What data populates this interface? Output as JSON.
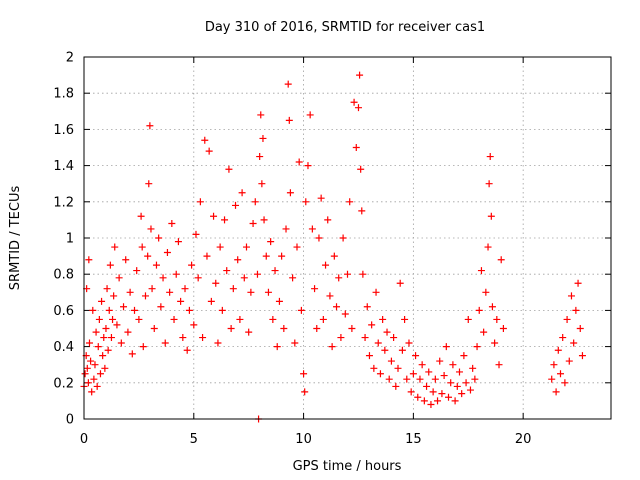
{
  "chart_data": {
    "type": "scatter",
    "title": "Day 310 of 2016, SRMTID for receiver cas1",
    "xlabel": "GPS time / hours",
    "ylabel": "SRMTID / TECUs",
    "xlim": [
      0,
      24
    ],
    "ylim": [
      0,
      2
    ],
    "xticks": [
      0,
      5,
      10,
      15,
      20
    ],
    "yticks": [
      0,
      0.2,
      0.4,
      0.6,
      0.8,
      1,
      1.2,
      1.4,
      1.6,
      1.8,
      2
    ],
    "xtick_labels": [
      "0",
      "5",
      "10",
      "15",
      "20"
    ],
    "ytick_labels": [
      "0",
      "0.2",
      "0.4",
      "0.6",
      "0.8",
      "1",
      "1.2",
      "1.4",
      "1.6",
      "1.8",
      "2"
    ],
    "grid": true,
    "marker": "plus",
    "color": "#ff0000",
    "series": [
      {
        "name": "SRMTID",
        "points": [
          [
            0.0,
            0.18
          ],
          [
            0.05,
            0.25
          ],
          [
            0.1,
            0.35
          ],
          [
            0.12,
            0.72
          ],
          [
            0.15,
            0.28
          ],
          [
            0.2,
            0.2
          ],
          [
            0.22,
            0.88
          ],
          [
            0.25,
            0.42
          ],
          [
            0.3,
            0.32
          ],
          [
            0.35,
            0.15
          ],
          [
            0.4,
            0.6
          ],
          [
            0.45,
            0.22
          ],
          [
            0.5,
            0.3
          ],
          [
            0.55,
            0.48
          ],
          [
            0.6,
            0.18
          ],
          [
            0.65,
            0.4
          ],
          [
            0.7,
            0.55
          ],
          [
            0.75,
            0.25
          ],
          [
            0.8,
            0.65
          ],
          [
            0.85,
            0.35
          ],
          [
            0.9,
            0.45
          ],
          [
            0.95,
            0.28
          ],
          [
            1.0,
            0.5
          ],
          [
            1.05,
            0.72
          ],
          [
            1.1,
            0.38
          ],
          [
            1.15,
            0.6
          ],
          [
            1.2,
            0.85
          ],
          [
            1.25,
            0.45
          ],
          [
            1.3,
            0.55
          ],
          [
            1.35,
            0.68
          ],
          [
            1.4,
            0.95
          ],
          [
            1.5,
            0.52
          ],
          [
            1.6,
            0.78
          ],
          [
            1.7,
            0.42
          ],
          [
            1.8,
            0.62
          ],
          [
            1.9,
            0.88
          ],
          [
            2.0,
            0.48
          ],
          [
            2.1,
            0.7
          ],
          [
            2.2,
            0.36
          ],
          [
            2.3,
            0.6
          ],
          [
            2.4,
            0.82
          ],
          [
            2.5,
            0.55
          ],
          [
            2.6,
            1.12
          ],
          [
            2.65,
            0.95
          ],
          [
            2.7,
            0.4
          ],
          [
            2.8,
            0.68
          ],
          [
            2.9,
            0.9
          ],
          [
            2.95,
            1.3
          ],
          [
            3.0,
            1.62
          ],
          [
            3.05,
            1.05
          ],
          [
            3.1,
            0.72
          ],
          [
            3.2,
            0.5
          ],
          [
            3.3,
            0.85
          ],
          [
            3.4,
            1.0
          ],
          [
            3.5,
            0.62
          ],
          [
            3.6,
            0.78
          ],
          [
            3.7,
            0.42
          ],
          [
            3.8,
            0.92
          ],
          [
            3.9,
            0.7
          ],
          [
            4.0,
            1.08
          ],
          [
            4.1,
            0.55
          ],
          [
            4.2,
            0.8
          ],
          [
            4.3,
            0.98
          ],
          [
            4.4,
            0.65
          ],
          [
            4.5,
            0.45
          ],
          [
            4.6,
            0.72
          ],
          [
            4.7,
            0.38
          ],
          [
            4.8,
            0.6
          ],
          [
            4.9,
            0.85
          ],
          [
            5.0,
            0.52
          ],
          [
            5.1,
            1.02
          ],
          [
            5.2,
            0.78
          ],
          [
            5.3,
            1.2
          ],
          [
            5.4,
            0.45
          ],
          [
            5.5,
            1.54
          ],
          [
            5.6,
            0.9
          ],
          [
            5.7,
            1.48
          ],
          [
            5.8,
            0.65
          ],
          [
            5.9,
            1.12
          ],
          [
            6.0,
            0.75
          ],
          [
            6.1,
            0.42
          ],
          [
            6.2,
            0.95
          ],
          [
            6.3,
            0.6
          ],
          [
            6.4,
            1.1
          ],
          [
            6.5,
            0.82
          ],
          [
            6.6,
            1.38
          ],
          [
            6.7,
            0.5
          ],
          [
            6.8,
            0.72
          ],
          [
            6.9,
            1.18
          ],
          [
            7.0,
            0.88
          ],
          [
            7.1,
            0.55
          ],
          [
            7.2,
            1.25
          ],
          [
            7.3,
            0.78
          ],
          [
            7.4,
            0.95
          ],
          [
            7.5,
            0.48
          ],
          [
            7.6,
            0.7
          ],
          [
            7.7,
            1.08
          ],
          [
            7.8,
            1.2
          ],
          [
            7.9,
            0.8
          ],
          [
            7.95,
            0.0
          ],
          [
            8.0,
            1.45
          ],
          [
            8.05,
            1.68
          ],
          [
            8.1,
            1.3
          ],
          [
            8.15,
            1.55
          ],
          [
            8.2,
            1.1
          ],
          [
            8.3,
            0.9
          ],
          [
            8.4,
            0.7
          ],
          [
            8.5,
            0.98
          ],
          [
            8.6,
            0.55
          ],
          [
            8.7,
            0.82
          ],
          [
            8.8,
            0.4
          ],
          [
            8.9,
            0.65
          ],
          [
            9.0,
            0.9
          ],
          [
            9.1,
            0.5
          ],
          [
            9.2,
            1.05
          ],
          [
            9.3,
            1.85
          ],
          [
            9.35,
            1.65
          ],
          [
            9.4,
            1.25
          ],
          [
            9.5,
            0.78
          ],
          [
            9.6,
            0.42
          ],
          [
            9.7,
            0.95
          ],
          [
            9.8,
            1.42
          ],
          [
            9.9,
            0.6
          ],
          [
            10.0,
            0.25
          ],
          [
            10.05,
            0.15
          ],
          [
            10.1,
            1.2
          ],
          [
            10.2,
            1.4
          ],
          [
            10.3,
            1.68
          ],
          [
            10.4,
            1.05
          ],
          [
            10.5,
            0.72
          ],
          [
            10.6,
            0.5
          ],
          [
            10.7,
            1.0
          ],
          [
            10.8,
            1.22
          ],
          [
            10.9,
            0.55
          ],
          [
            11.0,
            0.85
          ],
          [
            11.1,
            1.1
          ],
          [
            11.2,
            0.68
          ],
          [
            11.3,
            0.4
          ],
          [
            11.4,
            0.9
          ],
          [
            11.5,
            0.62
          ],
          [
            11.6,
            0.78
          ],
          [
            11.7,
            0.45
          ],
          [
            11.8,
            1.0
          ],
          [
            11.9,
            0.58
          ],
          [
            12.0,
            0.8
          ],
          [
            12.1,
            1.2
          ],
          [
            12.2,
            0.5
          ],
          [
            12.3,
            1.75
          ],
          [
            12.4,
            1.5
          ],
          [
            12.5,
            1.72
          ],
          [
            12.55,
            1.9
          ],
          [
            12.6,
            1.38
          ],
          [
            12.65,
            1.15
          ],
          [
            12.7,
            0.8
          ],
          [
            12.8,
            0.45
          ],
          [
            12.9,
            0.62
          ],
          [
            13.0,
            0.35
          ],
          [
            13.1,
            0.52
          ],
          [
            13.2,
            0.28
          ],
          [
            13.3,
            0.7
          ],
          [
            13.4,
            0.42
          ],
          [
            13.5,
            0.25
          ],
          [
            13.6,
            0.55
          ],
          [
            13.7,
            0.38
          ],
          [
            13.8,
            0.48
          ],
          [
            13.9,
            0.22
          ],
          [
            14.0,
            0.32
          ],
          [
            14.1,
            0.45
          ],
          [
            14.2,
            0.18
          ],
          [
            14.3,
            0.28
          ],
          [
            14.4,
            0.75
          ],
          [
            14.5,
            0.38
          ],
          [
            14.6,
            0.55
          ],
          [
            14.7,
            0.22
          ],
          [
            14.8,
            0.42
          ],
          [
            14.9,
            0.15
          ],
          [
            15.0,
            0.25
          ],
          [
            15.1,
            0.35
          ],
          [
            15.2,
            0.12
          ],
          [
            15.3,
            0.22
          ],
          [
            15.4,
            0.3
          ],
          [
            15.5,
            0.1
          ],
          [
            15.6,
            0.18
          ],
          [
            15.7,
            0.26
          ],
          [
            15.8,
            0.08
          ],
          [
            15.9,
            0.15
          ],
          [
            16.0,
            0.22
          ],
          [
            16.1,
            0.1
          ],
          [
            16.2,
            0.32
          ],
          [
            16.3,
            0.14
          ],
          [
            16.4,
            0.24
          ],
          [
            16.5,
            0.4
          ],
          [
            16.6,
            0.12
          ],
          [
            16.7,
            0.2
          ],
          [
            16.8,
            0.3
          ],
          [
            16.9,
            0.1
          ],
          [
            17.0,
            0.18
          ],
          [
            17.1,
            0.26
          ],
          [
            17.2,
            0.14
          ],
          [
            17.3,
            0.35
          ],
          [
            17.4,
            0.2
          ],
          [
            17.5,
            0.55
          ],
          [
            17.6,
            0.16
          ],
          [
            17.7,
            0.28
          ],
          [
            17.8,
            0.22
          ],
          [
            17.9,
            0.4
          ],
          [
            18.0,
            0.6
          ],
          [
            18.1,
            0.82
          ],
          [
            18.2,
            0.48
          ],
          [
            18.3,
            0.7
          ],
          [
            18.4,
            0.95
          ],
          [
            18.45,
            1.3
          ],
          [
            18.5,
            1.45
          ],
          [
            18.55,
            1.12
          ],
          [
            18.6,
            0.62
          ],
          [
            18.7,
            0.42
          ],
          [
            18.8,
            0.55
          ],
          [
            18.9,
            0.3
          ],
          [
            19.0,
            0.88
          ],
          [
            19.1,
            0.5
          ],
          [
            21.3,
            0.22
          ],
          [
            21.4,
            0.3
          ],
          [
            21.5,
            0.15
          ],
          [
            21.6,
            0.38
          ],
          [
            21.7,
            0.25
          ],
          [
            21.8,
            0.45
          ],
          [
            21.9,
            0.2
          ],
          [
            22.0,
            0.55
          ],
          [
            22.1,
            0.32
          ],
          [
            22.2,
            0.68
          ],
          [
            22.3,
            0.42
          ],
          [
            22.4,
            0.6
          ],
          [
            22.5,
            0.75
          ],
          [
            22.6,
            0.5
          ],
          [
            22.7,
            0.35
          ]
        ]
      }
    ]
  }
}
